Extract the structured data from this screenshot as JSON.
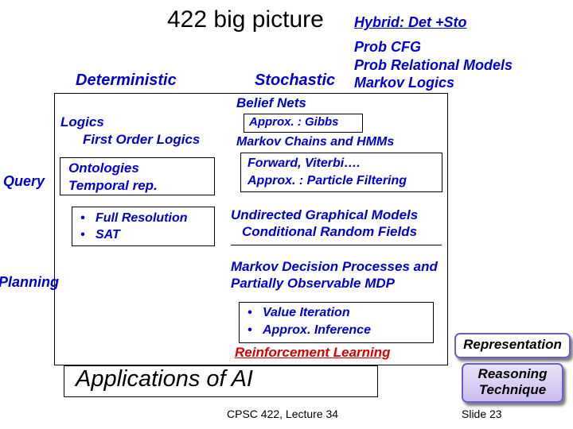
{
  "title": "422 big picture",
  "hybrid": "Hybrid: Det +Sto",
  "prob_models": {
    "l1": "Prob CFG",
    "l2": "Prob  Relational Models",
    "l3": "Markov Logics"
  },
  "headers": {
    "deterministic": "Deterministic",
    "stochastic": "Stochastic"
  },
  "left": {
    "logics": "Logics",
    "fol": "First Order Logics",
    "ontologies": "Ontologies",
    "temporal": "Temporal rep.",
    "full_resolution": "Full Resolution",
    "sat": "SAT",
    "query": "Query",
    "planning": "Planning"
  },
  "right": {
    "belief": "Belief Nets",
    "gibbs": "Approx. : Gibbs",
    "mchmm": "Markov Chains and HMMs",
    "forward": "Forward, Viterbi….",
    "particle": "Approx. : Particle Filtering",
    "ugm": "Undirected Graphical Models",
    "crf": "Conditional Random Fields",
    "mdp1": "Markov Decision Processes  and",
    "mdp2": "Partially Observable MDP",
    "vi": "Value Iteration",
    "approx_inf": "Approx. Inference",
    "rl": "Reinforcement Learning"
  },
  "apps": "Applications of AI",
  "boxes": {
    "representation": "Representation",
    "reasoning1": "Reasoning",
    "reasoning2": "Technique"
  },
  "footer": {
    "left": "CPSC 422, Lecture 34",
    "right": "Slide 23"
  },
  "colors": {
    "primary": "#0000d4",
    "accent": "#d80000",
    "box_border": "#6b5bd4",
    "grad_top": "#e8e2f8",
    "grad_bottom": "#cbbef0"
  }
}
